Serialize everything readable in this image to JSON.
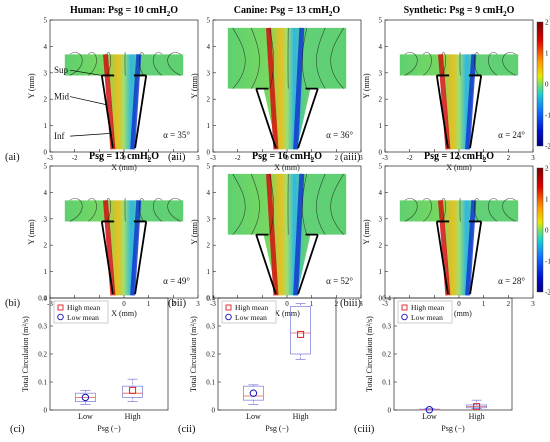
{
  "chart_data": [
    {
      "id": "ai",
      "type": "heatmap",
      "title_parts": [
        "Human: Psg = 10 cmH",
        "2",
        "O"
      ],
      "panel_label": "(ai)",
      "alpha": "α = 35°",
      "xlabel": "X (mm)",
      "ylabel": "Y (mm)",
      "xlim": [
        -3,
        3
      ],
      "ylim": [
        0,
        5
      ],
      "xticks": [
        -3,
        -2,
        -1,
        0,
        1,
        2,
        3
      ],
      "yticks": [
        0,
        1,
        2,
        3,
        4,
        5
      ],
      "level_labels": [
        "Sup",
        "Mid",
        "Inf"
      ]
    },
    {
      "id": "aii",
      "type": "heatmap",
      "title_parts": [
        "Canine: Psg = 13 cmH",
        "2",
        "O"
      ],
      "panel_label": "(aii)",
      "alpha": "α = 36°",
      "xlabel": "X (mm)",
      "ylabel": "Y (mm)",
      "xlim": [
        -3,
        3
      ],
      "ylim": [
        0,
        5
      ],
      "xticks": [
        -3,
        -2,
        -1,
        0,
        1,
        2,
        3
      ],
      "yticks": [
        0,
        1,
        2,
        3,
        4,
        5
      ]
    },
    {
      "id": "aiii",
      "type": "heatmap",
      "title_parts": [
        "Synthetic: Psg = 9 cmH",
        "2",
        "O"
      ],
      "panel_label": "(aiii)",
      "alpha": "α = 24°",
      "xlabel": "X (mm)",
      "ylabel": "Y (mm)",
      "xlim": [
        -3,
        3
      ],
      "ylim": [
        0,
        5
      ],
      "xticks": [
        -3,
        -2,
        -1,
        0,
        1,
        2,
        3
      ],
      "yticks": [
        0,
        1,
        2,
        3,
        4,
        5
      ],
      "colorbar": {
        "label": "Vorticity (1/s)",
        "exponent": "×10⁵",
        "ticks": [
          2,
          1,
          0,
          -1,
          -2
        ]
      }
    },
    {
      "id": "bi",
      "type": "heatmap",
      "title_parts": [
        "Psg = 13 cmH",
        "2",
        "O"
      ],
      "panel_label": "(bi)",
      "alpha": "α = 49°",
      "xlabel": "X (mm)",
      "ylabel": "Y (mm)",
      "xlim": [
        -3,
        3
      ],
      "ylim": [
        0,
        5
      ],
      "xticks": [
        -3,
        -2,
        -1,
        0,
        1,
        2,
        3
      ],
      "yticks": [
        0,
        1,
        2,
        3,
        4,
        5
      ]
    },
    {
      "id": "bii",
      "type": "heatmap",
      "title_parts": [
        "Psg = 16 cmH",
        "2",
        "O"
      ],
      "panel_label": "(bii)",
      "alpha": "α = 52°",
      "xlabel": "X (mm)",
      "ylabel": "Y (mm)",
      "xlim": [
        -3,
        3
      ],
      "ylim": [
        0,
        5
      ],
      "xticks": [
        -3,
        -2,
        -1,
        0,
        1,
        2,
        3
      ],
      "yticks": [
        0,
        1,
        2,
        3,
        4,
        5
      ]
    },
    {
      "id": "biii",
      "type": "heatmap",
      "title_parts": [
        "Psg = 12 cmH",
        "2",
        "O"
      ],
      "panel_label": "(biii)",
      "alpha": "α = 28°",
      "xlabel": "X (mm)",
      "ylabel": "Y (mm)",
      "xlim": [
        -3,
        3
      ],
      "ylim": [
        0,
        5
      ],
      "xticks": [
        -3,
        -2,
        -1,
        0,
        1,
        2,
        3
      ],
      "yticks": [
        0,
        1,
        2,
        3,
        4,
        5
      ],
      "colorbar": {
        "label": "Vorticity (1/s)",
        "exponent": "×10⁵",
        "ticks": [
          2,
          1,
          0,
          -1,
          -2
        ]
      }
    },
    {
      "id": "ci",
      "type": "box",
      "panel_label": "(ci)",
      "xlabel": "Psg (−)",
      "ylabel": "Total Circulation (m²/s)",
      "ylim": [
        0,
        0.4
      ],
      "yticks": [
        0,
        0.1,
        0.2,
        0.3,
        0.4
      ],
      "categories": [
        "Low",
        "High"
      ],
      "boxes": [
        {
          "whisker_low": 0.02,
          "q1": 0.03,
          "median": 0.045,
          "q3": 0.06,
          "whisker_high": 0.07,
          "mean": 0.045
        },
        {
          "whisker_low": 0.03,
          "q1": 0.045,
          "median": 0.06,
          "q3": 0.085,
          "whisker_high": 0.11,
          "mean": 0.07
        }
      ],
      "legend": [
        "High mean",
        "Low  mean"
      ]
    },
    {
      "id": "cii",
      "type": "box",
      "panel_label": "(cii)",
      "xlabel": "Psg (−)",
      "ylabel": "Total Circulation (m²/s)",
      "ylim": [
        0,
        0.4
      ],
      "yticks": [
        0,
        0.1,
        0.2,
        0.3,
        0.4
      ],
      "categories": [
        "Low",
        "High"
      ],
      "boxes": [
        {
          "whisker_low": 0.02,
          "q1": 0.035,
          "median": 0.05,
          "q3": 0.085,
          "whisker_high": 0.09,
          "mean": 0.06
        },
        {
          "whisker_low": 0.18,
          "q1": 0.2,
          "median": 0.275,
          "q3": 0.37,
          "whisker_high": 0.38,
          "mean": 0.27
        }
      ],
      "legend": [
        "High mean",
        "Low  mean"
      ]
    },
    {
      "id": "ciii",
      "type": "box",
      "panel_label": "(ciii)",
      "xlabel": "Psg (−)",
      "ylabel": "Total Circulation (m²/s)",
      "ylim": [
        0,
        0.4
      ],
      "yticks": [
        0,
        0.1,
        0.2,
        0.3,
        0.4
      ],
      "categories": [
        "Low",
        "High"
      ],
      "boxes": [
        {
          "whisker_low": 0.0,
          "q1": 0.0,
          "median": 0.001,
          "q3": 0.003,
          "whisker_high": 0.005,
          "mean": 0.001
        },
        {
          "whisker_low": 0.005,
          "q1": 0.008,
          "median": 0.012,
          "q3": 0.018,
          "whisker_high": 0.035,
          "mean": 0.012
        }
      ],
      "legend": [
        "High mean",
        "Low  mean"
      ]
    }
  ]
}
